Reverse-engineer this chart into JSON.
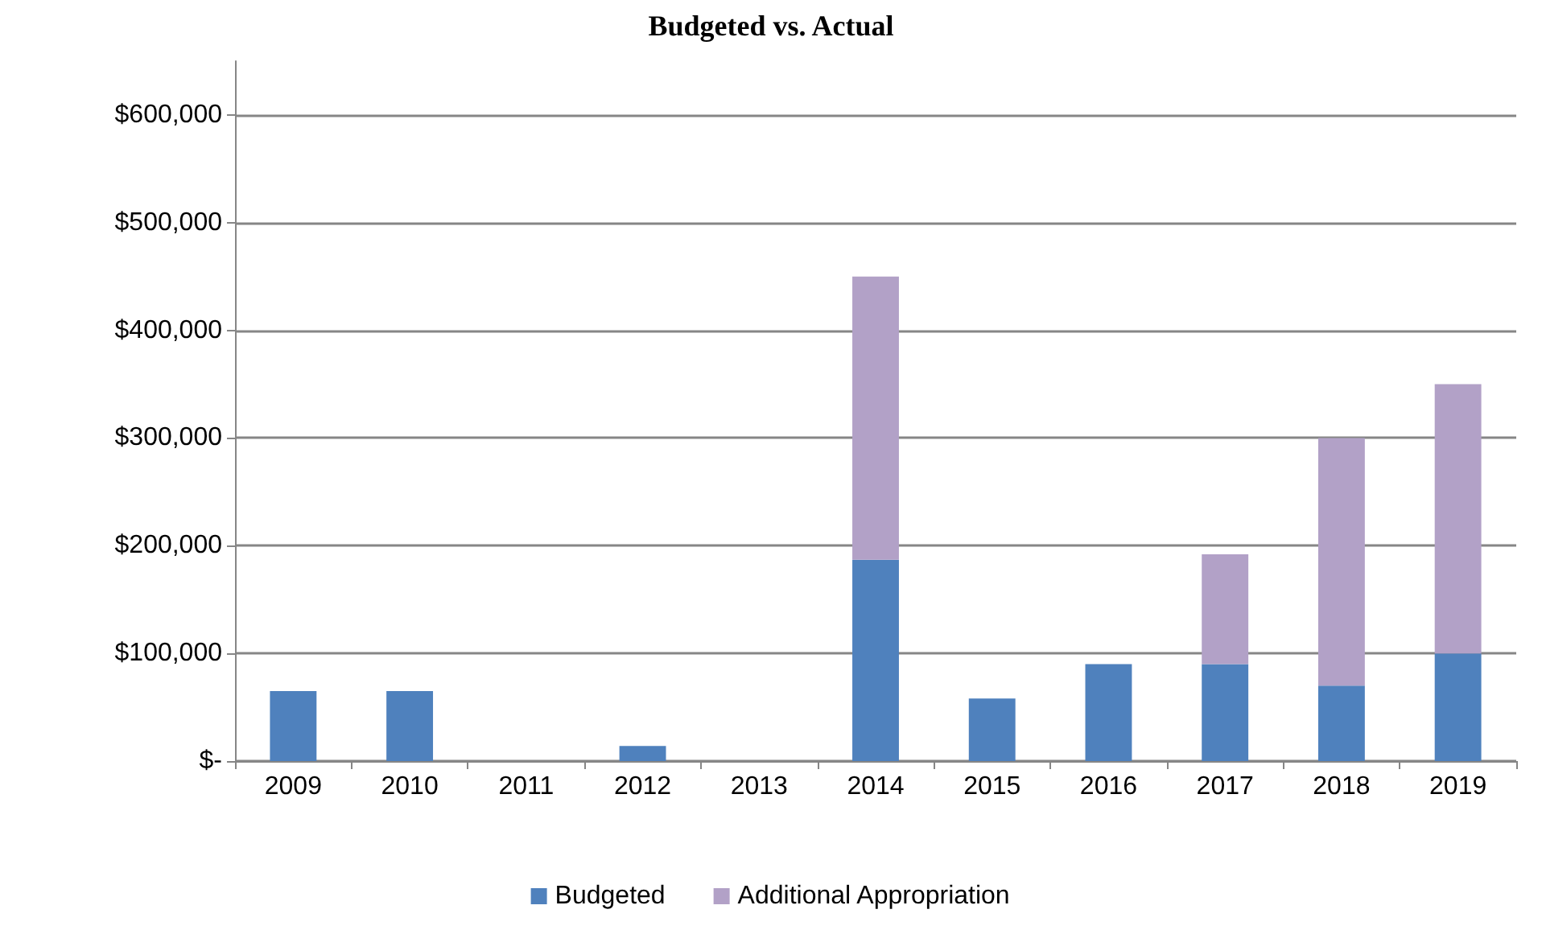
{
  "chart_data": {
    "type": "bar",
    "title": "Budgeted vs. Actual",
    "stacked": true,
    "categories": [
      "2009",
      "2010",
      "2011",
      "2012",
      "2013",
      "2014",
      "2015",
      "2016",
      "2017",
      "2018",
      "2019"
    ],
    "series": [
      {
        "name": "Budgeted",
        "color": "#4f81bd",
        "values": [
          65000,
          65000,
          0,
          14000,
          0,
          187000,
          58000,
          90000,
          90000,
          70000,
          100000
        ]
      },
      {
        "name": "Additional Appropriation",
        "color": "#b2a1c7",
        "values": [
          0,
          0,
          0,
          0,
          0,
          263000,
          0,
          0,
          102000,
          230000,
          250000
        ]
      }
    ],
    "ylim": [
      0,
      650000
    ],
    "yticks": [
      {
        "value": 0,
        "label": "$-"
      },
      {
        "value": 100000,
        "label": "$100,000"
      },
      {
        "value": 200000,
        "label": "$200,000"
      },
      {
        "value": 300000,
        "label": "$300,000"
      },
      {
        "value": 400000,
        "label": "$400,000"
      },
      {
        "value": 500000,
        "label": "$500,000"
      },
      {
        "value": 600000,
        "label": "$600,000"
      }
    ],
    "grid": "y",
    "legend": "bottom"
  }
}
